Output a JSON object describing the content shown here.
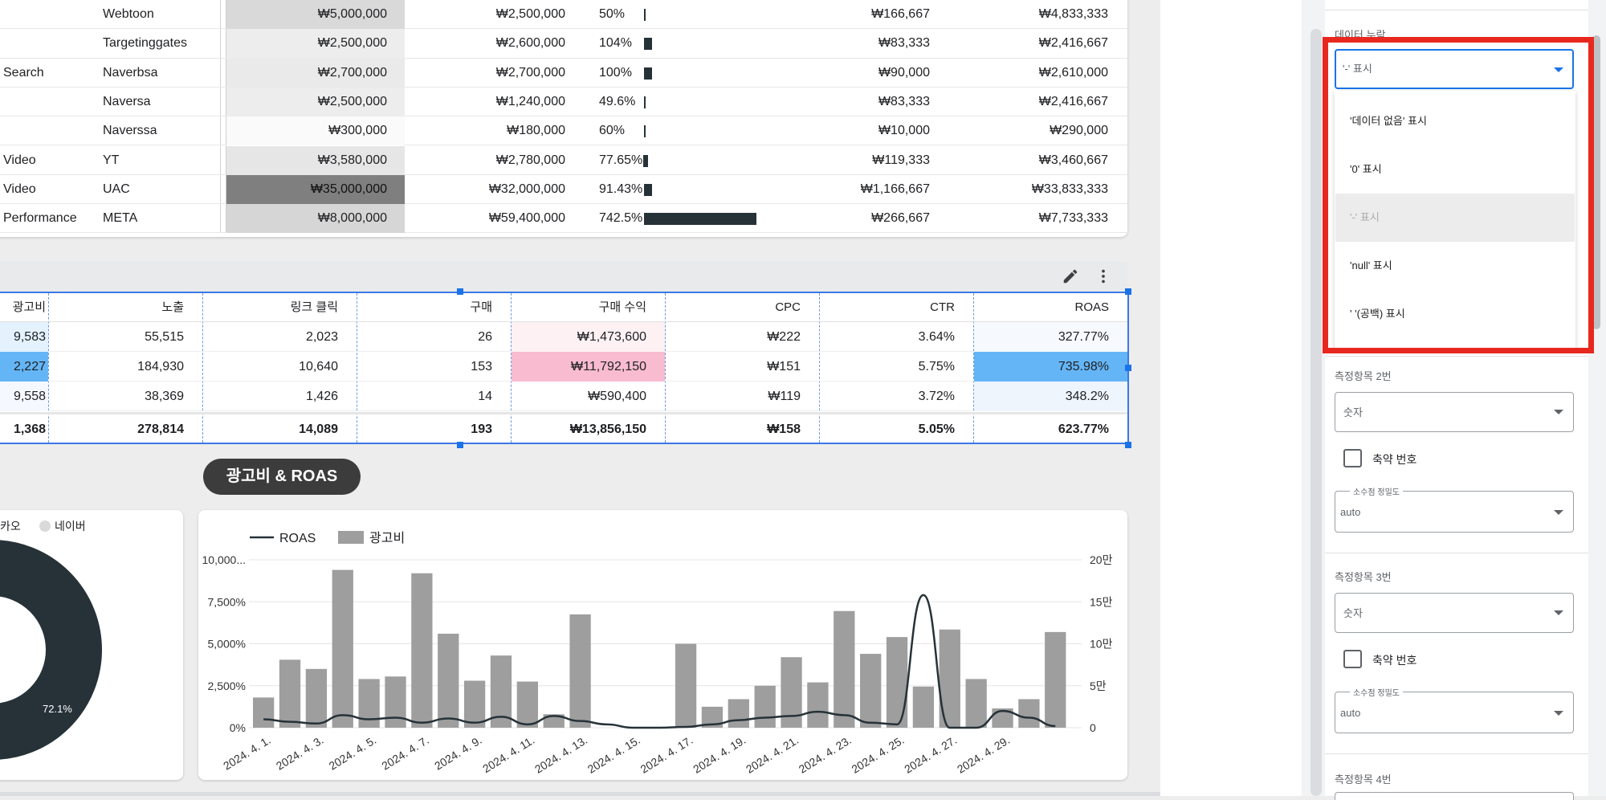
{
  "top_table": {
    "rows": [
      {
        "channel": "",
        "media": "Webtoon",
        "budget": "₩5,000,000",
        "spend": "₩2,500,000",
        "rate": "50%",
        "rate_value": 0.5,
        "daily": "₩166,667",
        "remain": "₩4,833,333",
        "shade": "#d9d9d9"
      },
      {
        "channel": "",
        "media": "Targetinggates",
        "budget": "₩2,500,000",
        "spend": "₩2,600,000",
        "rate": "104%",
        "rate_value": 1.04,
        "daily": "₩83,333",
        "remain": "₩2,416,667",
        "shade": "#ededed"
      },
      {
        "channel": "Search",
        "media": "Naverbsa",
        "budget": "₩2,700,000",
        "spend": "₩2,700,000",
        "rate": "100%",
        "rate_value": 1.0,
        "daily": "₩90,000",
        "remain": "₩2,610,000",
        "shade": "#eaeaea"
      },
      {
        "channel": "",
        "media": "Naversa",
        "budget": "₩2,500,000",
        "spend": "₩1,240,000",
        "rate": "49.6%",
        "rate_value": 0.496,
        "daily": "₩83,333",
        "remain": "₩2,416,667",
        "shade": "#ededed"
      },
      {
        "channel": "",
        "media": "Naverssa",
        "budget": "₩300,000",
        "spend": "₩180,000",
        "rate": "60%",
        "rate_value": 0.6,
        "daily": "₩10,000",
        "remain": "₩290,000",
        "shade": "#fafafa"
      },
      {
        "channel": "Video",
        "media": "YT",
        "budget": "₩3,580,000",
        "spend": "₩2,780,000",
        "rate": "77.65%",
        "rate_value": 0.7765,
        "daily": "₩119,333",
        "remain": "₩3,460,667",
        "shade": "#e6e6e6"
      },
      {
        "channel": "Video",
        "media": "UAC",
        "budget": "₩35,000,000",
        "spend": "₩32,000,000",
        "rate": "91.43%",
        "rate_value": 0.9143,
        "daily": "₩1,166,667",
        "remain": "₩33,833,333",
        "shade": "#7f7f7f"
      },
      {
        "channel": "Performance",
        "media": "META",
        "budget": "₩8,000,000",
        "spend": "₩59,400,000",
        "rate": "742.5%",
        "rate_value": 7.425,
        "daily": "₩266,667",
        "remain": "₩7,733,333",
        "shade": "#d6d6d6"
      }
    ]
  },
  "perf_table": {
    "headers": [
      "광고비",
      "노출",
      "링크 클릭",
      "구매",
      "구매 수익",
      "CPC",
      "CTR",
      "ROAS"
    ],
    "rows": [
      [
        "9,583",
        "55,515",
        "2,023",
        "26",
        "₩1,473,600",
        "₩222",
        "3.64%",
        "327.77%"
      ],
      [
        "2,227",
        "184,930",
        "10,640",
        "153",
        "₩11,792,150",
        "₩151",
        "5.75%",
        "735.98%"
      ],
      [
        "9,558",
        "38,369",
        "1,426",
        "14",
        "₩590,400",
        "₩119",
        "3.72%",
        "348.2%"
      ]
    ],
    "totals": [
      "1,368",
      "278,814",
      "14,089",
      "193",
      "₩13,856,150",
      "₩158",
      "5.05%",
      "623.77%"
    ]
  },
  "section_title": "광고비 & ROAS",
  "donut": {
    "legend": [
      "카오",
      "네이버"
    ],
    "label": "72.1%",
    "color_main": "#263238",
    "color_other": "#d9d9d9"
  },
  "chart_data": {
    "type": "bar",
    "legend": [
      "ROAS",
      "광고비"
    ],
    "y_left_ticks": [
      "10,000...",
      "7,500%",
      "5,000%",
      "2,500%",
      "0%"
    ],
    "y_right_ticks": [
      "20만",
      "15만",
      "10만",
      "5만",
      "0"
    ],
    "x_labels": [
      "2024. 4. 1.",
      "2024. 4. 3.",
      "2024. 4. 5.",
      "2024. 4. 7.",
      "2024. 4. 9.",
      "2024. 4. 11.",
      "2024. 4. 13.",
      "2024. 4. 15.",
      "2024. 4. 17.",
      "2024. 4. 19.",
      "2024. 4. 21.",
      "2024. 4. 23.",
      "2024. 4. 25.",
      "2024. 4. 27.",
      "2024. 4. 29."
    ],
    "ylim_left": [
      0,
      10000
    ],
    "ylim_right": [
      0,
      200000
    ],
    "series": [
      {
        "name": "광고비",
        "kind": "bar",
        "values": [
          36000,
          81000,
          70000,
          188000,
          58000,
          61000,
          184000,
          112000,
          56000,
          86000,
          55000,
          16000,
          135000,
          0,
          0,
          0,
          100000,
          25000,
          34000,
          50000,
          84000,
          54000,
          139000,
          88000,
          108000,
          49000,
          117000,
          58000,
          23000,
          34000,
          114000
        ]
      },
      {
        "name": "ROAS",
        "kind": "line",
        "values": [
          500,
          350,
          250,
          750,
          500,
          600,
          300,
          550,
          300,
          650,
          200,
          700,
          400,
          200,
          0,
          0,
          50,
          200,
          450,
          600,
          700,
          950,
          750,
          300,
          200,
          7900,
          0,
          0,
          1000,
          600,
          100
        ]
      }
    ]
  },
  "panel": {
    "missing_label": "데이터 누락",
    "missing_value": "'-' 표시",
    "options": [
      "'데이터 없음' 표시",
      "'0' 표시",
      "'-' 표시",
      "'null' 표시",
      "' '(공백) 표시"
    ],
    "selected_index": 2,
    "metric2_label": "측정항목 2번",
    "metric3_label": "측정항목 3번",
    "metric4_label": "측정항목 4번",
    "type_value": "숫자",
    "compact_label": "축약 번호",
    "precision_legend": "소수점 정밀도",
    "precision_value": "auto",
    "highlight_color": "#e8281e"
  }
}
